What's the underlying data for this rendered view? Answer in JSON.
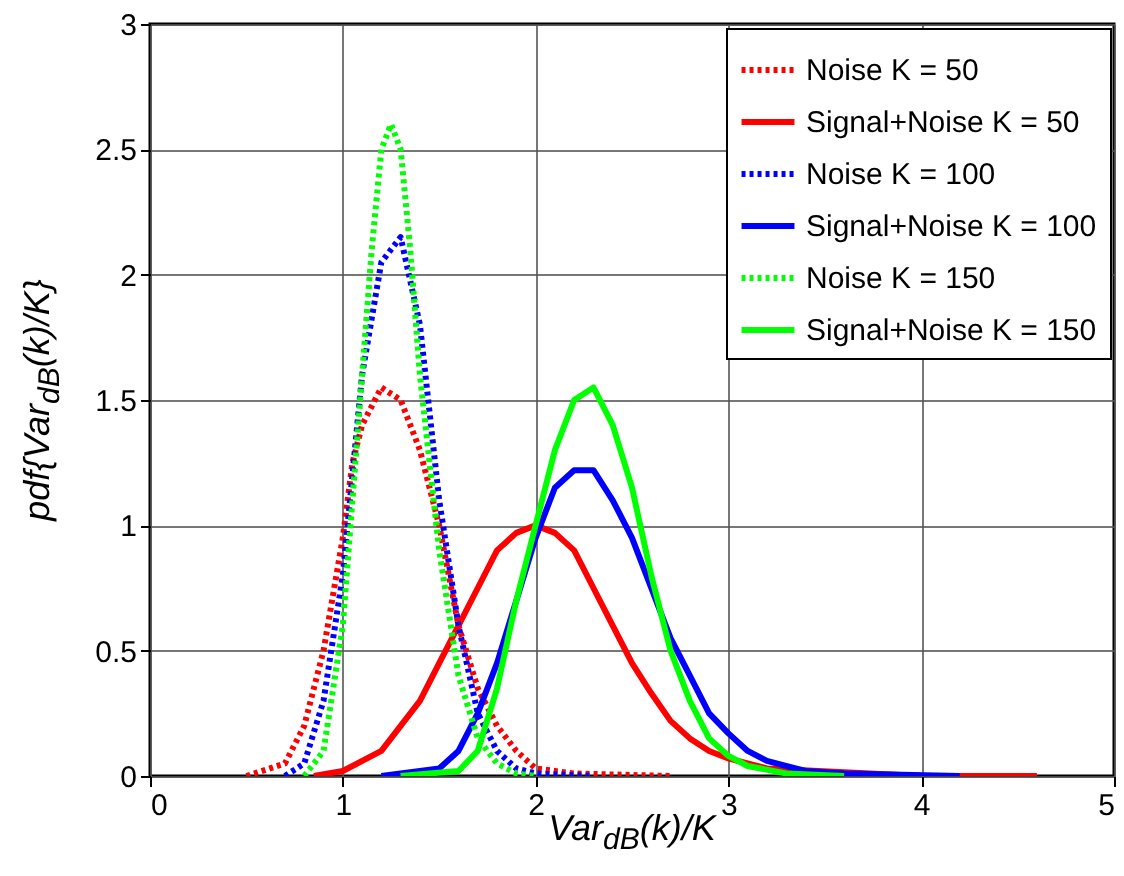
{
  "chart_data": {
    "type": "line",
    "xlabel": "Var$_{dB}$(k)/K",
    "ylabel": "pdf{Var$_{dB}$(k)/K}",
    "xlim": [
      0,
      5
    ],
    "xticks": [
      0,
      1,
      2,
      3,
      4,
      5
    ],
    "ylim": [
      0,
      3
    ],
    "yticks": [
      0,
      0.5,
      1,
      1.5,
      2,
      2.5,
      3
    ],
    "grid": true,
    "legend": "top right",
    "series": [
      {
        "name": "Noise K = 50",
        "color": "#ff0000",
        "line_style": "dotted",
        "x": [
          0.5,
          0.7,
          0.8,
          0.9,
          1.0,
          1.05,
          1.1,
          1.2,
          1.3,
          1.4,
          1.5,
          1.6,
          1.7,
          1.8,
          1.9,
          2.0,
          2.2,
          2.7
        ],
        "values": [
          0,
          0.05,
          0.2,
          0.5,
          0.95,
          1.25,
          1.4,
          1.55,
          1.5,
          1.3,
          1.0,
          0.6,
          0.35,
          0.2,
          0.1,
          0.03,
          0.01,
          0
        ]
      },
      {
        "name": "Signal+Noise K = 50",
        "color": "#ff0000",
        "line_style": "solid",
        "x": [
          0.85,
          1.0,
          1.2,
          1.4,
          1.5,
          1.6,
          1.7,
          1.8,
          1.9,
          2.0,
          2.1,
          2.2,
          2.3,
          2.4,
          2.5,
          2.6,
          2.7,
          2.8,
          2.9,
          3.0,
          3.2,
          4.0,
          4.6
        ],
        "values": [
          0,
          0.02,
          0.1,
          0.3,
          0.45,
          0.6,
          0.75,
          0.9,
          0.97,
          1.0,
          0.97,
          0.9,
          0.75,
          0.6,
          0.45,
          0.33,
          0.22,
          0.15,
          0.1,
          0.07,
          0.03,
          0,
          0
        ]
      },
      {
        "name": "Noise K = 100",
        "color": "#0000ff",
        "line_style": "dotted",
        "x": [
          0.7,
          0.8,
          0.9,
          1.0,
          1.05,
          1.1,
          1.2,
          1.3,
          1.4,
          1.5,
          1.6,
          1.7,
          1.8,
          1.9,
          2.0,
          2.3
        ],
        "values": [
          0,
          0.05,
          0.3,
          0.8,
          1.2,
          1.6,
          2.05,
          2.15,
          1.8,
          1.1,
          0.6,
          0.25,
          0.1,
          0.03,
          0.01,
          0
        ]
      },
      {
        "name": "Signal+Noise K = 100",
        "color": "#0000ff",
        "line_style": "solid",
        "x": [
          1.2,
          1.5,
          1.6,
          1.7,
          1.8,
          1.9,
          2.0,
          2.1,
          2.2,
          2.3,
          2.4,
          2.5,
          2.6,
          2.7,
          2.8,
          2.9,
          3.0,
          3.1,
          3.2,
          3.4,
          3.6,
          4.2
        ],
        "values": [
          0,
          0.03,
          0.1,
          0.25,
          0.45,
          0.7,
          0.95,
          1.15,
          1.22,
          1.22,
          1.1,
          0.95,
          0.75,
          0.55,
          0.4,
          0.25,
          0.17,
          0.1,
          0.06,
          0.02,
          0.01,
          0
        ]
      },
      {
        "name": "Noise K = 150",
        "color": "#00ff00",
        "line_style": "dotted",
        "x": [
          0.8,
          0.9,
          1.0,
          1.05,
          1.1,
          1.15,
          1.2,
          1.25,
          1.3,
          1.35,
          1.4,
          1.5,
          1.6,
          1.7,
          1.8,
          1.9,
          2.0
        ],
        "values": [
          0,
          0.1,
          0.6,
          1.1,
          1.6,
          2.1,
          2.5,
          2.6,
          2.5,
          2.1,
          1.6,
          0.9,
          0.4,
          0.15,
          0.05,
          0.01,
          0
        ]
      },
      {
        "name": "Signal+Noise K = 150",
        "color": "#00ff00",
        "line_style": "solid",
        "x": [
          1.3,
          1.6,
          1.7,
          1.8,
          1.9,
          2.0,
          2.1,
          2.2,
          2.3,
          2.4,
          2.5,
          2.6,
          2.7,
          2.8,
          2.9,
          3.0,
          3.1,
          3.3,
          3.6
        ],
        "values": [
          0,
          0.02,
          0.1,
          0.35,
          0.7,
          1.0,
          1.3,
          1.5,
          1.55,
          1.4,
          1.15,
          0.8,
          0.5,
          0.3,
          0.15,
          0.08,
          0.04,
          0.01,
          0
        ]
      }
    ]
  }
}
